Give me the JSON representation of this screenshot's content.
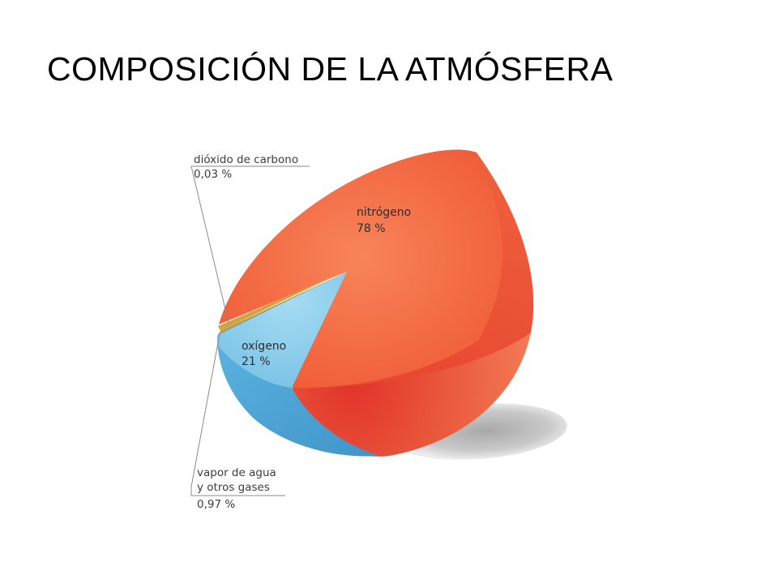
{
  "title": "COMPOSICIÓN DE LA ATMÓSFERA",
  "chart_data": {
    "type": "pie",
    "title": "COMPOSICIÓN DE LA ATMÓSFERA",
    "slices": [
      {
        "label": "nitrógeno",
        "value_label": "78 %",
        "value": 78,
        "color": "#f0643c"
      },
      {
        "label": "oxígeno",
        "value_label": "21 %",
        "value": 21,
        "color": "#8fd0ee"
      },
      {
        "label": "vapor de agua",
        "label2": "y otros gases",
        "value_label": "0,97 %",
        "value": 0.97,
        "color": "#9aa07a"
      },
      {
        "label": "dióxido de carbono",
        "value_label": "0,03 %",
        "value": 0.03,
        "color": "#d8a23a"
      }
    ]
  }
}
